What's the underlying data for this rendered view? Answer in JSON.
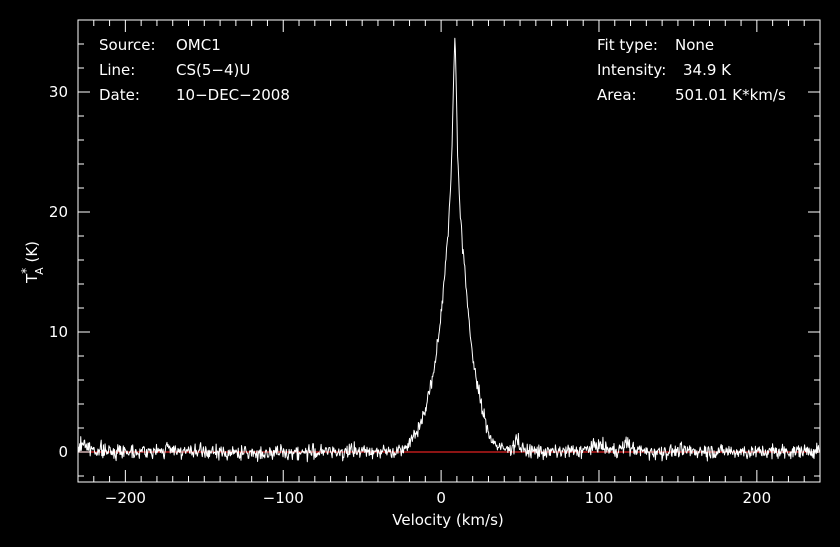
{
  "chart_data": {
    "type": "line",
    "xlabel": "Velocity (km/s)",
    "ylabel_main": "T",
    "ylabel_sup": "*",
    "ylabel_sub": "A",
    "ylabel_unit": " (K)",
    "xlim": [
      -230,
      240
    ],
    "ylim": [
      -2.5,
      36
    ],
    "xticks": [
      -200,
      -100,
      0,
      100,
      200
    ],
    "xtick_labels": [
      "−200",
      "−100",
      "0",
      "100",
      "200"
    ],
    "yticks": [
      0,
      10,
      20,
      30
    ],
    "ytick_labels": [
      "0",
      "10",
      "20",
      "30"
    ],
    "baseline": {
      "value": 0,
      "color": "#e02020"
    },
    "series": [
      {
        "color": "#ffffff",
        "noise_sigma": 0.3,
        "points": [
          [
            -230,
            0.2
          ],
          [
            -228,
            0.6
          ],
          [
            -226,
            0.9
          ],
          [
            -224,
            0.3
          ],
          [
            -210,
            0.0
          ],
          [
            -200,
            0.1
          ],
          [
            -180,
            0.0
          ],
          [
            -172,
            0.3
          ],
          [
            -160,
            0.0
          ],
          [
            -120,
            -0.1
          ],
          [
            -80,
            0.0
          ],
          [
            -40,
            0.1
          ],
          [
            -30,
            0.0
          ],
          [
            -25,
            0.3
          ],
          [
            -20,
            0.8
          ],
          [
            -15,
            1.8
          ],
          [
            -10,
            3.5
          ],
          [
            -5,
            6.5
          ],
          [
            -2,
            9.0
          ],
          [
            0,
            11.5
          ],
          [
            2,
            14.5
          ],
          [
            4,
            17.8
          ],
          [
            5,
            19.5
          ],
          [
            6,
            22.0
          ],
          [
            7,
            26.0
          ],
          [
            8,
            31.5
          ],
          [
            8.8,
            34.9
          ],
          [
            9.5,
            31.0
          ],
          [
            10.5,
            25.0
          ],
          [
            12,
            20.0
          ],
          [
            14,
            16.5
          ],
          [
            16,
            13.5
          ],
          [
            18,
            10.5
          ],
          [
            20,
            8.0
          ],
          [
            23,
            5.5
          ],
          [
            26,
            3.5
          ],
          [
            30,
            1.6
          ],
          [
            34,
            0.7
          ],
          [
            38,
            0.3
          ],
          [
            42,
            0.2
          ],
          [
            46,
            0.5
          ],
          [
            48,
            1.3
          ],
          [
            50,
            0.3
          ],
          [
            54,
            0.1
          ],
          [
            70,
            0.0
          ],
          [
            90,
            0.1
          ],
          [
            96,
            0.4
          ],
          [
            100,
            0.6
          ],
          [
            104,
            0.3
          ],
          [
            110,
            0.1
          ],
          [
            116,
            0.4
          ],
          [
            118,
            0.9
          ],
          [
            120,
            0.3
          ],
          [
            130,
            0.0
          ],
          [
            160,
            0.1
          ],
          [
            200,
            0.0
          ],
          [
            240,
            0.1
          ]
        ]
      }
    ],
    "annotations_left": [
      {
        "key": "Source:",
        "value": "OMC1"
      },
      {
        "key": "Line:",
        "value": "CS(5−4)U"
      },
      {
        "key": "Date:",
        "value": "10−DEC−2008"
      }
    ],
    "annotations_right": [
      {
        "key": "Fit type:",
        "value": "None"
      },
      {
        "key": "Intensity:",
        "value": "34.9 K"
      },
      {
        "key": "Area:",
        "value": "501.01 K*km/s"
      }
    ],
    "axis_color": "#ffffff",
    "background": "#000000"
  }
}
